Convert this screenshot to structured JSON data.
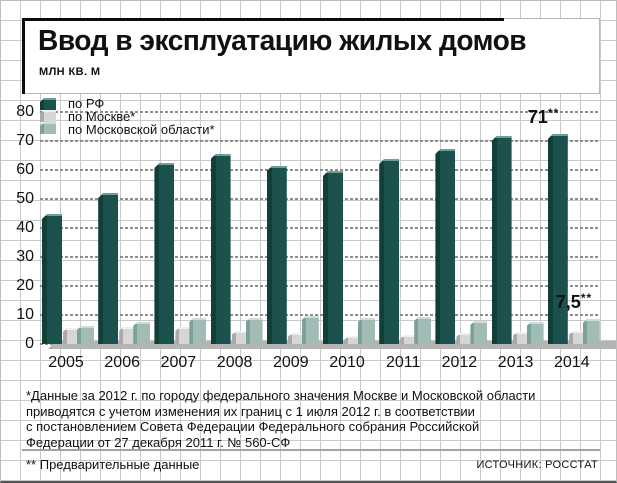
{
  "title": "Ввод в эксплуатацию жилых домов",
  "units_label": "МЛН КВ. М",
  "legend": {
    "items": [
      {
        "label": "по РФ"
      },
      {
        "label": "по Москве*"
      },
      {
        "label": "по Московской области*"
      }
    ]
  },
  "chart_data": {
    "type": "bar",
    "title": "Ввод в эксплуатацию жилых домов",
    "ylabel": "млн кв. м",
    "ylim": [
      0,
      80
    ],
    "ytick_step": 10,
    "grid": true,
    "legend_position": "top-left",
    "categories": [
      "2005",
      "2006",
      "2007",
      "2008",
      "2009",
      "2010",
      "2011",
      "2012",
      "2013",
      "2014"
    ],
    "series": [
      {
        "name": "по РФ",
        "values": [
          43.6,
          50.6,
          61.2,
          64.1,
          59.9,
          58.4,
          62.3,
          65.7,
          70.5,
          71
        ],
        "colors": {
          "front": "#1c524d",
          "side": "#123e3a",
          "top": "#6f9e96"
        }
      },
      {
        "name": "по Москве*",
        "values": [
          4.6,
          4.8,
          4.8,
          3.3,
          2.7,
          1.8,
          2.1,
          2.6,
          3.1,
          3.3
        ],
        "colors": {
          "front": "#d6d6d6",
          "side": "#a9a9a9",
          "top": "#efefef"
        }
      },
      {
        "name": "по Московской области*",
        "values": [
          5.3,
          6.4,
          7.8,
          7.8,
          8.5,
          7.9,
          8.4,
          6.9,
          6.7,
          7.5
        ],
        "colors": {
          "front": "#a0bcb5",
          "side": "#7ba29a",
          "top": "#cdddda"
        }
      }
    ],
    "annotations": [
      {
        "text": "71**",
        "series": "по РФ",
        "category": "2014"
      },
      {
        "text": "7,5**",
        "series": "по Московской области*",
        "category": "2014"
      }
    ]
  },
  "footnote_lines": [
    "*Данные за 2012 г. по городу федерального значения Москве и Московской области",
    "приводятся с учетом изменения их границ с 1 июля 2012 г. в соответствии",
    "с постановлением Совета Федерации Федерального собрания Российской",
    "Федерации от 27 декабря 2011 г. № 560-СФ"
  ],
  "footer": {
    "preliminary_note": "** Предварительные данные",
    "source": "ИСТОЧНИК: РОССТАТ"
  }
}
